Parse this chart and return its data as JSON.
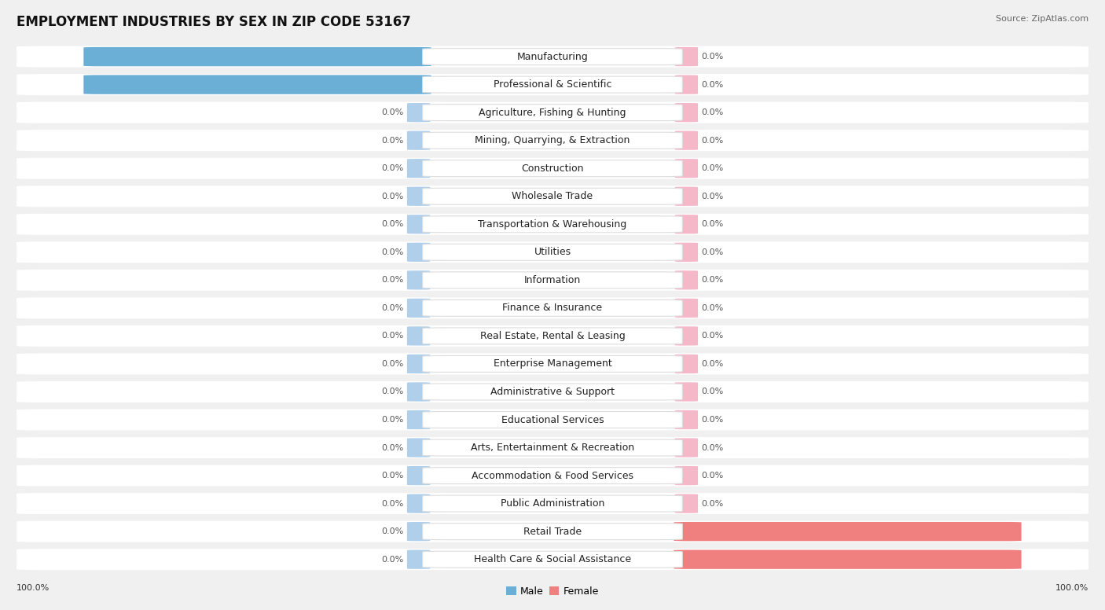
{
  "title": "EMPLOYMENT INDUSTRIES BY SEX IN ZIP CODE 53167",
  "source": "Source: ZipAtlas.com",
  "industries": [
    "Manufacturing",
    "Professional & Scientific",
    "Agriculture, Fishing & Hunting",
    "Mining, Quarrying, & Extraction",
    "Construction",
    "Wholesale Trade",
    "Transportation & Warehousing",
    "Utilities",
    "Information",
    "Finance & Insurance",
    "Real Estate, Rental & Leasing",
    "Enterprise Management",
    "Administrative & Support",
    "Educational Services",
    "Arts, Entertainment & Recreation",
    "Accommodation & Food Services",
    "Public Administration",
    "Retail Trade",
    "Health Care & Social Assistance"
  ],
  "male_pct": [
    100.0,
    100.0,
    0.0,
    0.0,
    0.0,
    0.0,
    0.0,
    0.0,
    0.0,
    0.0,
    0.0,
    0.0,
    0.0,
    0.0,
    0.0,
    0.0,
    0.0,
    0.0,
    0.0
  ],
  "female_pct": [
    0.0,
    0.0,
    0.0,
    0.0,
    0.0,
    0.0,
    0.0,
    0.0,
    0.0,
    0.0,
    0.0,
    0.0,
    0.0,
    0.0,
    0.0,
    0.0,
    0.0,
    100.0,
    100.0
  ],
  "male_color": "#6BAED6",
  "female_color": "#F08080",
  "male_stub_color": "#B0CFEA",
  "female_stub_color": "#F4B8C8",
  "bg_color": "#F0F0F0",
  "row_bg_color": "#FFFFFF",
  "row_alt_color": "#F5F5F5",
  "label_bg_color": "#FFFFFF",
  "title_fontsize": 12,
  "label_fontsize": 9,
  "value_fontsize": 8
}
